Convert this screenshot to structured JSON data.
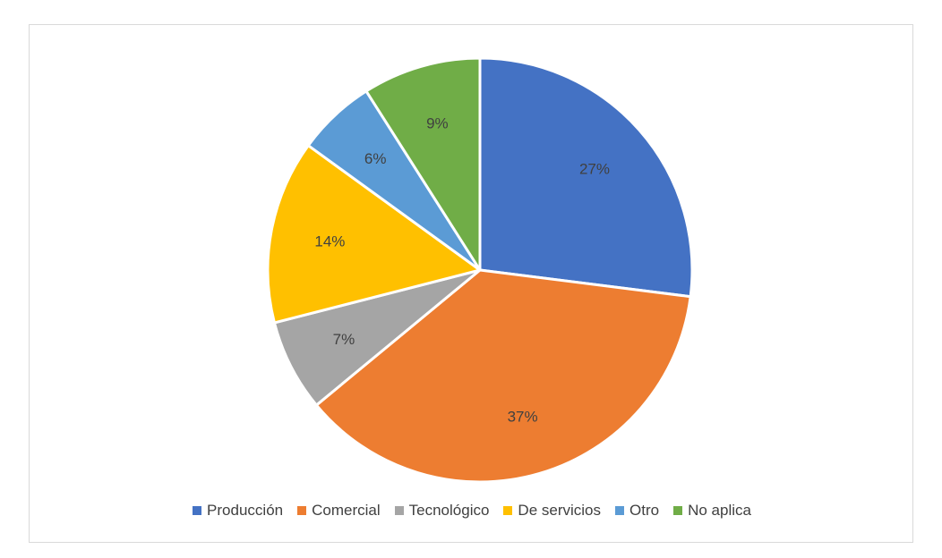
{
  "chart_data": {
    "type": "pie",
    "title": "",
    "categories": [
      "Producción",
      "Comercial",
      "Tecnológico",
      "De servicios",
      "Otro",
      "No aplica"
    ],
    "values": [
      27,
      37,
      7,
      14,
      6,
      9
    ],
    "data_labels": [
      "27%",
      "37%",
      "7%",
      "14%",
      "6%",
      "9%"
    ],
    "colors": [
      "#4472c4",
      "#ed7d31",
      "#a5a5a5",
      "#ffc000",
      "#5b9bd5",
      "#70ad47"
    ],
    "start_angle_deg": 0,
    "direction": "clockwise",
    "legend_position": "bottom"
  }
}
